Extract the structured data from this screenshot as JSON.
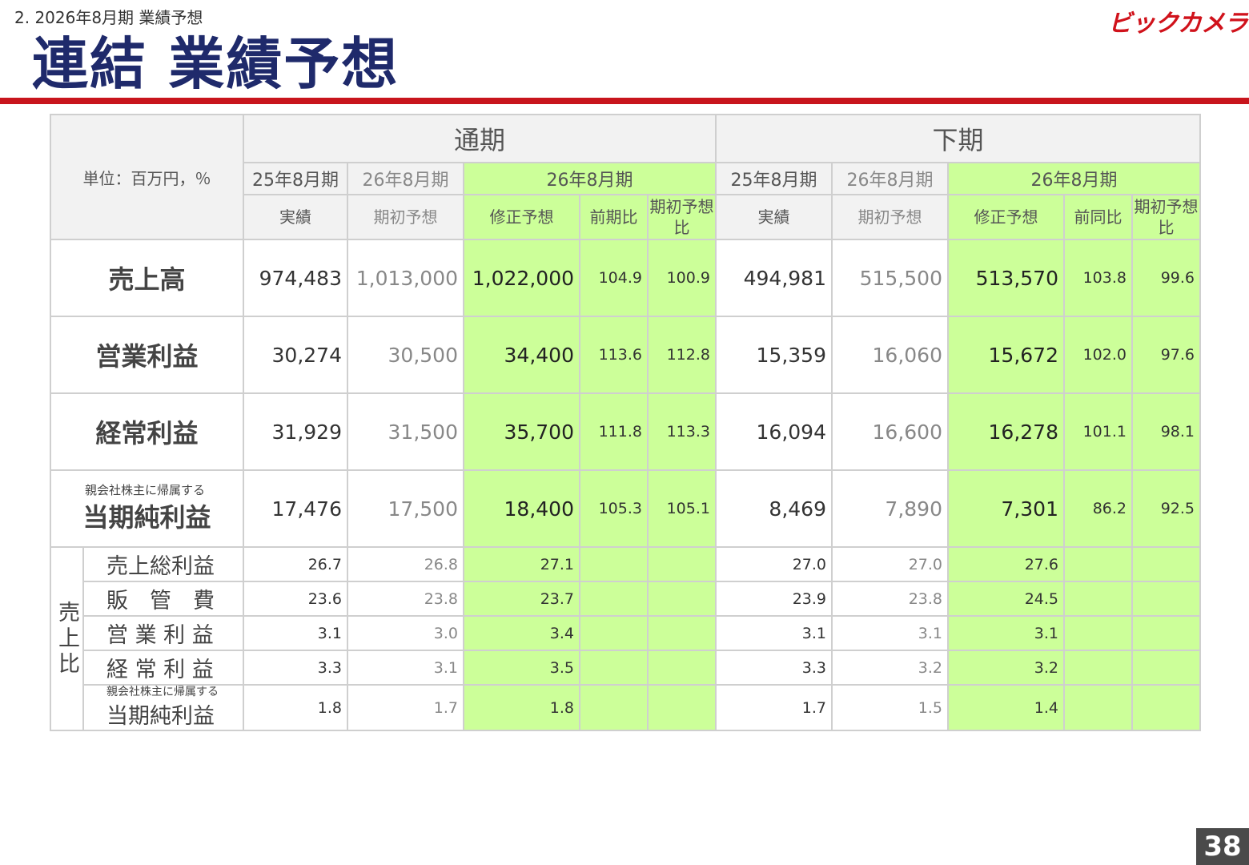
{
  "header": {
    "section": "2. 2026年8月期 業績予想",
    "title": "連結 業績予想",
    "logo_text": "ビックカメラ",
    "page_number": "38"
  },
  "colors": {
    "title": "#1f2a6b",
    "rule": "#c8151d",
    "highlight": "#ccff99"
  },
  "table": {
    "unit": "単位：百万円，％",
    "periods": [
      "通期",
      "下期"
    ],
    "years": [
      "25年8月期",
      "26年8月期",
      "26年8月期",
      "25年8月期",
      "26年8月期",
      "26年8月期"
    ],
    "cols": [
      "実績",
      "期初予想",
      "修正予想",
      "前期比",
      "期初予想比",
      "実績",
      "期初予想",
      "修正予想",
      "前同比",
      "期初予想比"
    ],
    "rows": [
      {
        "label": "売上高",
        "pre": "",
        "v": [
          "974,483",
          "1,013,000",
          "1,022,000",
          "104.9",
          "100.9",
          "494,981",
          "515,500",
          "513,570",
          "103.8",
          "99.6"
        ]
      },
      {
        "label": "営業利益",
        "pre": "",
        "v": [
          "30,274",
          "30,500",
          "34,400",
          "113.6",
          "112.8",
          "15,359",
          "16,060",
          "15,672",
          "102.0",
          "97.6"
        ]
      },
      {
        "label": "経常利益",
        "pre": "",
        "v": [
          "31,929",
          "31,500",
          "35,700",
          "111.8",
          "113.3",
          "16,094",
          "16,600",
          "16,278",
          "101.1",
          "98.1"
        ]
      },
      {
        "label": "当期純利益",
        "pre": "親会社株主に帰属する",
        "v": [
          "17,476",
          "17,500",
          "18,400",
          "105.3",
          "105.1",
          "8,469",
          "7,890",
          "7,301",
          "86.2",
          "92.5"
        ]
      }
    ],
    "ratio_group": "売上比",
    "ratios": [
      {
        "label": "売上総利益",
        "pre": "",
        "v": [
          "26.7",
          "26.8",
          "27.1",
          "",
          "",
          "27.0",
          "27.0",
          "27.6",
          "",
          ""
        ]
      },
      {
        "label": "販　管　費",
        "pre": "",
        "v": [
          "23.6",
          "23.8",
          "23.7",
          "",
          "",
          "23.9",
          "23.8",
          "24.5",
          "",
          ""
        ]
      },
      {
        "label": "営 業 利 益",
        "pre": "",
        "v": [
          "3.1",
          "3.0",
          "3.4",
          "",
          "",
          "3.1",
          "3.1",
          "3.1",
          "",
          ""
        ]
      },
      {
        "label": "経 常 利 益",
        "pre": "",
        "v": [
          "3.3",
          "3.1",
          "3.5",
          "",
          "",
          "3.3",
          "3.2",
          "3.2",
          "",
          ""
        ]
      },
      {
        "label": "当期純利益",
        "pre": "親会社株主に帰属する",
        "v": [
          "1.8",
          "1.7",
          "1.8",
          "",
          "",
          "1.7",
          "1.5",
          "1.4",
          "",
          ""
        ]
      }
    ]
  }
}
